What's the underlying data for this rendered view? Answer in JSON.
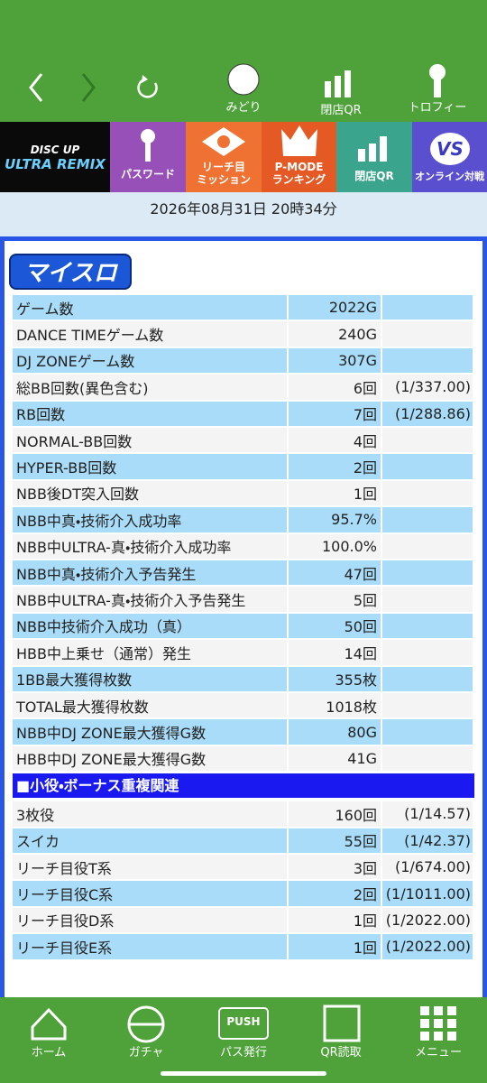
{
  "top_nav": {
    "midori": "みどり",
    "closing_qr": "閉店QR",
    "trophy": "トロフィー"
  },
  "tiles": {
    "logo_top": "DISC UP",
    "logo_bottom": "ULTRA REMIX",
    "password": "パスワード",
    "reach_1": "リーチ目",
    "reach_2": "ミッション",
    "pmode_1": "P-MODE",
    "pmode_2": "ランキング",
    "closing_qr": "閉店QR",
    "vs_badge": "VS",
    "online": "オンライン対戦"
  },
  "datetime": "2026年08月31日 20時34分",
  "panel_title": "マイスロ",
  "table": {
    "rows": [
      [
        "ゲーム数",
        "2022G"
      ],
      [
        "DANCE TIMEゲーム数",
        "240G"
      ],
      [
        "DJ ZONEゲーム数",
        "307G"
      ],
      [
        "総BB回数(異色含む)",
        "6回",
        "(1/337.00)"
      ],
      [
        "RB回数",
        "7回",
        "(1/288.86)"
      ],
      [
        "NORMAL-BB回数",
        "4回"
      ],
      [
        "HYPER-BB回数",
        "2回"
      ],
      [
        "NBB後DT突入回数",
        "1回"
      ],
      [
        "NBB中真・技術介入成功率",
        "95.7%"
      ],
      [
        "NBB中ULTRA-真・技術介入成功率",
        "100.0%"
      ],
      [
        "NBB中真・技術介入予告発生",
        "47回"
      ],
      [
        "NBB中ULTRA-真・技術介入予告発生",
        "5回"
      ],
      [
        "NBB中技術介入成功（真）",
        "50回"
      ],
      [
        "HBB中上乗せ（通常）発生",
        "14回"
      ],
      [
        "1BB最大獲得枚数",
        "355枚"
      ],
      [
        "TOTAL最大獲得枚数",
        "1018枚"
      ],
      [
        "NBB中DJ ZONE最大獲得G数",
        "80G"
      ],
      [
        "HBB中DJ ZONE最大獲得G数",
        "41G"
      ]
    ]
  },
  "section_title": "■小役・ボーナス重複関連",
  "table2": {
    "rows": [
      [
        "3枚役",
        "160回",
        "(1/14.57)"
      ],
      [
        "スイカ",
        "55回",
        "(1/42.37)"
      ],
      [
        "リーチ目役T系",
        "3回",
        "(1/674.00)"
      ],
      [
        "リーチ目役C系",
        "2回",
        "(1/1011.00)"
      ],
      [
        "リーチ目役D系",
        "1回",
        "(1/2022.00)"
      ],
      [
        "リーチ目役E系",
        "1回",
        "(1/2022.00)"
      ]
    ]
  },
  "bottom_nav": {
    "home": "ホーム",
    "gacha": "ガチャ",
    "push": "PUSH",
    "pass": "パス発行",
    "qr": "QR読取",
    "menu": "メニュー"
  }
}
